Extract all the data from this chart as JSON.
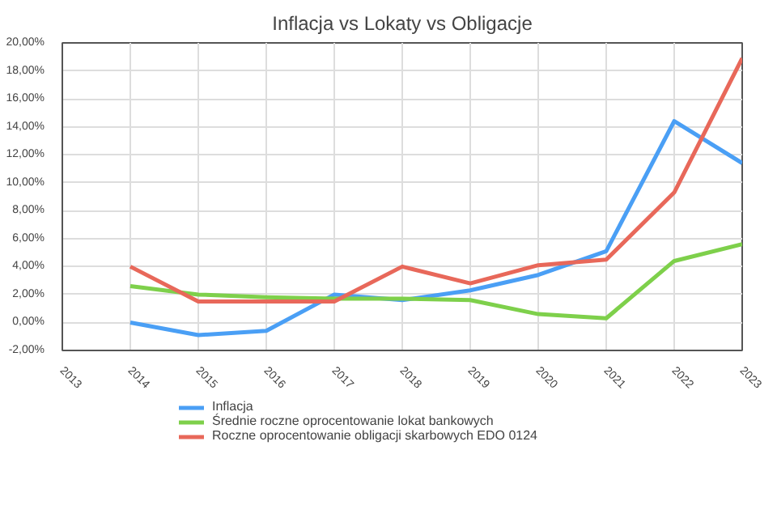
{
  "chart_data": {
    "type": "line",
    "title": "Inflacja vs Lokaty vs Obligacje",
    "x": [
      2014,
      2015,
      2016,
      2017,
      2018,
      2019,
      2020,
      2021,
      2022,
      2023
    ],
    "series": [
      {
        "name": "Inflacja",
        "color": "#4a9ff5",
        "values": [
          0.0,
          -0.9,
          -0.6,
          2.0,
          1.6,
          2.3,
          3.4,
          5.1,
          14.4,
          11.4
        ]
      },
      {
        "name": "Średnie roczne oprocentowanie lokat bankowych",
        "color": "#7ed04b",
        "values": [
          2.6,
          2.0,
          1.8,
          1.7,
          1.7,
          1.6,
          0.6,
          0.3,
          4.4,
          5.6
        ]
      },
      {
        "name": "Roczne oprocentowanie obligacji skarbowych EDO 0124",
        "color": "#e8685a",
        "values": [
          4.0,
          1.5,
          1.5,
          1.5,
          4.0,
          2.8,
          4.1,
          4.5,
          9.3,
          18.9
        ]
      }
    ],
    "xlim": [
      2013,
      2023
    ],
    "xticks": [
      2013,
      2014,
      2015,
      2016,
      2017,
      2018,
      2019,
      2020,
      2021,
      2022,
      2023
    ],
    "ylim": [
      -2,
      20
    ],
    "yticks": [
      {
        "value": -2,
        "label": "-2,00%"
      },
      {
        "value": 0,
        "label": "0,00%"
      },
      {
        "value": 2,
        "label": "2,00%"
      },
      {
        "value": 4,
        "label": "4,00%"
      },
      {
        "value": 6,
        "label": "6,00%"
      },
      {
        "value": 8,
        "label": "8,00%"
      },
      {
        "value": 10,
        "label": "10,00%"
      },
      {
        "value": 12,
        "label": "12,00%"
      },
      {
        "value": 14,
        "label": "14,00%"
      },
      {
        "value": 16,
        "label": "16,00%"
      },
      {
        "value": 18,
        "label": "18,00%"
      },
      {
        "value": 20,
        "label": "20,00%"
      }
    ],
    "grid": true,
    "legend": "bottom",
    "marker": "none",
    "line_style": "solid"
  }
}
